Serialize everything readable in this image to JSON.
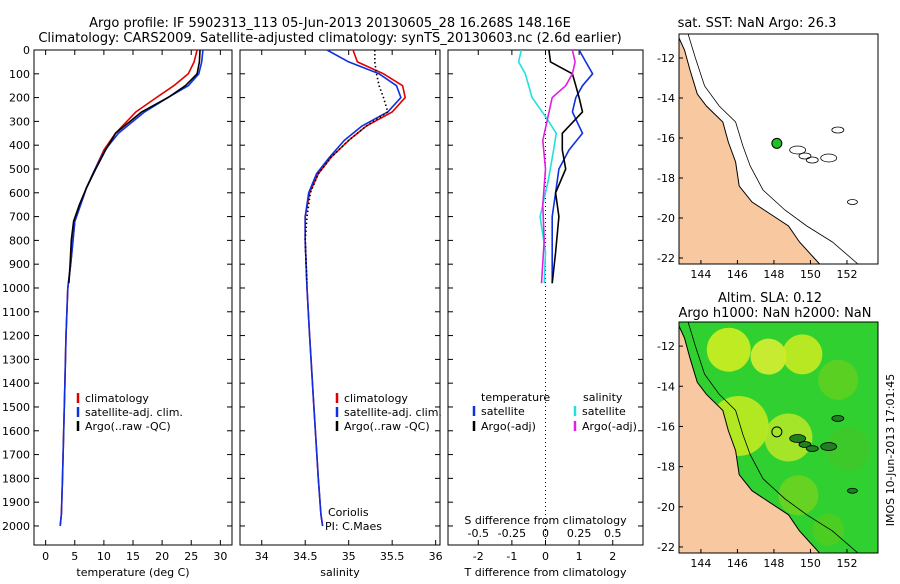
{
  "header": {
    "line1": "Argo profile: IF 5902313_113 05-Jun-2013 20130605_28 16.268S 148.16E",
    "line2": "Climatology: CARS2009. Satellite-adjusted climatology: synTS_20130603.nc (2.6d earlier)"
  },
  "colors": {
    "climatology": "#e00000",
    "satellite": "#1030e0",
    "argo": "#000000",
    "salinity_satellite": "#20e0e0",
    "salinity_argo": "#e020e0",
    "land": "#f8c8a0",
    "ocean_marker": "#20c020"
  },
  "chart_data": [
    {
      "type": "line",
      "xlabel": "temperature (deg C)",
      "xticks": [
        "0",
        "5",
        "10",
        "15",
        "20",
        "25",
        "30"
      ],
      "xlim": [
        -2,
        32
      ],
      "ylim": [
        0,
        2080
      ],
      "yticks": [
        "0",
        "100",
        "200",
        "300",
        "400",
        "500",
        "600",
        "700",
        "800",
        "900",
        "1000",
        "1100",
        "1200",
        "1300",
        "1400",
        "1500",
        "1600",
        "1700",
        "1800",
        "1900",
        "2000"
      ],
      "legend": [
        "climatology",
        "satellite-adj. clim.",
        "Argo(..raw -QC)"
      ],
      "series": [
        {
          "name": "climatology",
          "x": [
            26,
            25.5,
            24.5,
            22,
            19,
            15.5,
            12,
            10,
            8.5,
            7,
            6,
            5,
            4.7,
            4.3,
            3.8,
            3.5,
            3.3,
            3.1,
            2.9,
            2.7,
            2.5
          ],
          "y": [
            0,
            50,
            100,
            150,
            200,
            260,
            350,
            420,
            500,
            580,
            650,
            720,
            800,
            900,
            1000,
            1200,
            1400,
            1600,
            1800,
            1950,
            2000
          ]
        },
        {
          "name": "satellite-adj. clim.",
          "x": [
            27,
            26.8,
            26.3,
            24.5,
            21,
            17,
            12.5,
            10.2,
            8.5,
            7,
            6,
            5,
            4.7,
            4.3,
            3.8,
            3.5,
            3.3,
            3.1,
            2.9,
            2.7,
            2.5
          ],
          "y": [
            0,
            50,
            100,
            150,
            200,
            260,
            350,
            420,
            500,
            580,
            650,
            720,
            800,
            900,
            1000,
            1200,
            1400,
            1600,
            1800,
            1950,
            2000
          ]
        },
        {
          "name": "Argo(..raw -QC)",
          "x": [
            26.5,
            26.4,
            26,
            24,
            21,
            16.5,
            12,
            10.3,
            8.6,
            7,
            5.8,
            4.8,
            4.4,
            4.2,
            4
          ],
          "y": [
            0,
            50,
            100,
            150,
            200,
            260,
            350,
            420,
            500,
            580,
            650,
            720,
            800,
            900,
            980
          ]
        }
      ]
    },
    {
      "type": "line",
      "xlabel": "salinity",
      "xticks": [
        "34",
        "34.5",
        "35",
        "35.5",
        "36"
      ],
      "xlim": [
        33.75,
        36.05
      ],
      "ylim": [
        0,
        2080
      ],
      "legend": [
        "climatology",
        "satellite-adj. clim.",
        "Argo(..raw -QC)"
      ],
      "annotations": [
        "Coriolis",
        "PI: C.Maes"
      ],
      "series": [
        {
          "name": "climatology",
          "x": [
            35.05,
            35.1,
            35.4,
            35.62,
            35.65,
            35.5,
            35.2,
            35,
            34.8,
            34.65,
            34.55,
            34.5,
            34.5,
            34.52,
            34.55,
            34.6,
            34.65,
            34.68,
            34.7
          ],
          "y": [
            0,
            50,
            100,
            150,
            200,
            260,
            320,
            380,
            450,
            520,
            600,
            700,
            800,
            1000,
            1200,
            1500,
            1800,
            1950,
            2000
          ]
        },
        {
          "name": "satellite-adj. clim.",
          "x": [
            34.75,
            35,
            35.35,
            35.55,
            35.6,
            35.45,
            35.15,
            34.95,
            34.78,
            34.63,
            34.54,
            34.5,
            34.5,
            34.52,
            34.55,
            34.6,
            34.65,
            34.68,
            34.7
          ],
          "y": [
            0,
            50,
            100,
            150,
            200,
            260,
            320,
            380,
            450,
            520,
            600,
            700,
            800,
            1000,
            1200,
            1500,
            1800,
            1950,
            2000
          ]
        },
        {
          "name": "Argo(..raw -QC)",
          "x": [
            35.3,
            35.3,
            35.32,
            35.35,
            35.4,
            35.45,
            35.2,
            35,
            34.8,
            34.65,
            34.56,
            34.52,
            34.5,
            34.52
          ],
          "y": [
            0,
            50,
            100,
            150,
            200,
            260,
            320,
            380,
            450,
            520,
            600,
            700,
            800,
            980
          ]
        }
      ]
    },
    {
      "type": "line",
      "xlabel": "T difference from climatology",
      "xlabel_top": "S difference from climatology",
      "xticks": [
        "-2",
        "-1",
        "0",
        "1",
        "2"
      ],
      "xticks_top": [
        "-0.5",
        "-0.25",
        "0",
        "0.25",
        "0.5"
      ],
      "xlim": [
        -2.9,
        2.9
      ],
      "ylim": [
        0,
        2080
      ],
      "legend_headers": [
        "temperature",
        "salinity"
      ],
      "legend": [
        "satellite",
        "Argo(-adj)",
        "satellite",
        "Argo(-adj)"
      ],
      "series": [
        {
          "name": "T satellite",
          "x": [
            1,
            1.2,
            1.4,
            1.1,
            0.9,
            0.8,
            1.1,
            0.7,
            0.4,
            0.3,
            0.2,
            0.2,
            0.2
          ],
          "y": [
            0,
            50,
            100,
            150,
            200,
            260,
            350,
            420,
            500,
            600,
            700,
            850,
            980
          ]
        },
        {
          "name": "T Argo(-adj)",
          "x": [
            0.1,
            0.15,
            0.8,
            0.9,
            1,
            1.1,
            0.5,
            0.5,
            0.6,
            0.3,
            0.4,
            0.3,
            0.2
          ],
          "y": [
            0,
            50,
            100,
            150,
            200,
            260,
            350,
            420,
            500,
            600,
            700,
            850,
            980
          ]
        },
        {
          "name": "S satellite",
          "x": [
            -0.18,
            -0.2,
            -0.15,
            -0.1,
            0.0,
            0.08,
            0.06,
            0.02,
            -0.04,
            0.0,
            -0.01
          ],
          "y": [
            0,
            50,
            100,
            200,
            280,
            350,
            420,
            550,
            700,
            850,
            980
          ]
        },
        {
          "name": "S Argo(-adj)",
          "x": [
            0.2,
            0.22,
            0.2,
            0.15,
            0.05,
            -0.02,
            0.0,
            -0.02,
            -0.01,
            -0.03
          ],
          "y": [
            0,
            50,
            100,
            150,
            200,
            380,
            500,
            650,
            800,
            980
          ]
        }
      ]
    }
  ],
  "map_top": {
    "title": "sat. SST: NaN Argo: 26.3",
    "xticks": [
      "144",
      "146",
      "148",
      "150",
      "152"
    ],
    "yticks": [
      "-12",
      "-14",
      "-16",
      "-18",
      "-20",
      "-22"
    ],
    "xlim": [
      142.8,
      153.7
    ],
    "ylim": [
      -22.3,
      -10.8
    ],
    "argo_point": {
      "lon": 148.16,
      "lat": -16.268
    }
  },
  "map_bottom": {
    "title_line1": "Altim. SLA: 0.12",
    "title_line2": "Argo h1000: NaN h2000: NaN",
    "xticks": [
      "144",
      "146",
      "148",
      "150",
      "152"
    ],
    "yticks": [
      "-12",
      "-14",
      "-16",
      "-18",
      "-20",
      "-22"
    ],
    "xlim": [
      142.8,
      153.7
    ],
    "ylim": [
      -22.3,
      -10.8
    ],
    "argo_point": {
      "lon": 148.16,
      "lat": -16.268
    }
  },
  "side_label": "IMOS 10-Jun-2013 17:01:45"
}
